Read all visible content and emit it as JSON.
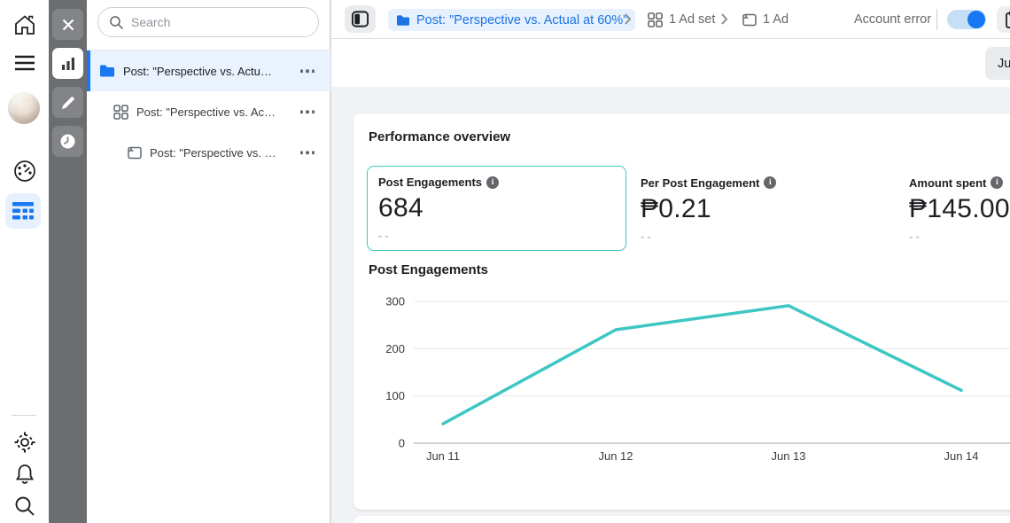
{
  "colors": {
    "accent_blue": "#1877F2",
    "teal": "#3DC6C3",
    "selected_row_bg": "#EAF2FD",
    "pill_bg": "#E7F0FD"
  },
  "rail": {
    "icons": [
      "home-icon",
      "menu-icon",
      "profile-avatar",
      "meter-icon",
      "ads-manager-icon",
      "settings-icon",
      "notifications-icon",
      "search-icon"
    ]
  },
  "toolbar": {
    "icons": [
      "close-icon",
      "bar-chart-icon",
      "edit-icon",
      "history-icon"
    ]
  },
  "sidebar": {
    "search_placeholder": "Search",
    "items": [
      {
        "level": "campaign",
        "label": "Post: \"Perspective vs. Actu…",
        "selected": true
      },
      {
        "level": "adset",
        "label": "Post: \"Perspective vs. Ac…",
        "selected": false
      },
      {
        "level": "ad",
        "label": "Post: \"Perspective vs. …",
        "selected": false
      }
    ]
  },
  "topbar": {
    "campaign_crumb": "Post: \"Perspective vs. Actual at 60%\"",
    "adset_crumb": "1 Ad set",
    "ad_crumb": "1 Ad",
    "account_error_label": "Account error",
    "toggle_state": "on"
  },
  "datebar": {
    "date_button_label": "Ju"
  },
  "overview": {
    "title": "Performance overview",
    "metrics": [
      {
        "label": "Post Engagements",
        "value": "684",
        "delta": "--",
        "selected": true
      },
      {
        "label": "Per Post Engagement",
        "value": "₱0.21",
        "delta": "--",
        "selected": false
      },
      {
        "label": "Amount spent",
        "value": "₱145.00",
        "delta": "--",
        "selected": false
      }
    ]
  },
  "chart_data": {
    "type": "line",
    "title": "Post Engagements",
    "x": [
      "Jun 11",
      "Jun 12",
      "Jun 13",
      "Jun 14"
    ],
    "series": [
      {
        "name": "Post Engagements",
        "values": [
          41,
          240,
          291,
          112
        ]
      }
    ],
    "ylim": [
      0,
      300
    ],
    "yticks": [
      0,
      100,
      200,
      300
    ],
    "xlabel": "",
    "ylabel": "",
    "grid": true,
    "legend": false,
    "line_color": "#3DC6C3"
  }
}
